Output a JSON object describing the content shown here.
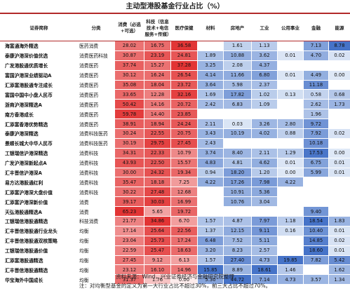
{
  "title": "主动型港股基金行业占比（%）",
  "table": {
    "columns": [
      "证券简称",
      "分类",
      "消费（必选+可选）",
      "科技（信息技术+电信服务+传媒）",
      "医疗保健",
      "材料",
      "房地产",
      "工业",
      "公用事业",
      "金融",
      "能源"
    ],
    "rows": [
      [
        "海富通海外精选",
        "医药消费",
        "28.02",
        "16.75",
        "36.58",
        null,
        "1.61",
        "1.13",
        null,
        "7.13",
        "8.78"
      ],
      [
        "泰康沪港深价值优选",
        "消费医药科技",
        "30.87",
        "23.19",
        "24.81",
        "1.89",
        "10.88",
        "3.62",
        "0.01",
        "4.70",
        "0.02"
      ],
      [
        "广发港股通优质增长",
        "消费医药",
        "37.74",
        "15.27",
        "37.28",
        "3.25",
        "2.08",
        "4.37",
        null,
        null,
        null
      ],
      [
        "富国沪港深业绩驱动A",
        "消费医药",
        "30.12",
        "16.24",
        "26.54",
        "4.14",
        "11.66",
        "6.80",
        "0.01",
        "4.49",
        "0.00"
      ],
      [
        "汇添富港股通专注成长",
        "消费医药",
        "35.08",
        "18.04",
        "23.72",
        "3.64",
        "5.98",
        "2.37",
        null,
        "11.18",
        null
      ],
      [
        "富国中国中小盘人民币",
        "消费医药",
        "33.65",
        "12.28",
        "32.16",
        "1.69",
        "17.82",
        "1.02",
        "0.13",
        "0.58",
        "0.68"
      ],
      [
        "浙商沪港深精选A",
        "消费医药",
        "50.42",
        "14.16",
        "20.72",
        "2.42",
        "6.83",
        "1.09",
        null,
        "2.62",
        "1.73"
      ],
      [
        "南方香港成长",
        "消费医药",
        "59.78",
        "14.40",
        "23.85",
        null,
        null,
        null,
        null,
        "1.96",
        null
      ],
      [
        "汇添富香港优势精选",
        "消费医药",
        "38.91",
        "18.94",
        "24.24",
        "2.11",
        "0.03",
        "3.26",
        "2.80",
        "9.72",
        null
      ],
      [
        "泰康沪港深精选",
        "消费科技医药",
        "30.24",
        "22.55",
        "20.75",
        "3.43",
        "10.19",
        "4.02",
        "0.88",
        "7.92",
        "0.02"
      ],
      [
        "景顺长城大中华人民币",
        "消费科技医药",
        "30.19",
        "29.75",
        "27.45",
        "2.43",
        null,
        null,
        null,
        "10.18",
        null
      ],
      [
        "工银瑞信沪港深精选",
        "消费科技",
        "34.31",
        "22.33",
        "10.79",
        "3.74",
        "8.40",
        "2.11",
        "1.29",
        "17.53",
        "0.00"
      ],
      [
        "广发沪港深新起点A",
        "消费科技",
        "43.93",
        "22.50",
        "15.57",
        "4.83",
        "4.81",
        "4.62",
        "0.01",
        "6.75",
        "0.01"
      ],
      [
        "汇丰晋信沪港深A",
        "消费科技",
        "30.00",
        "24.32",
        "19.34",
        "0.94",
        "18.20",
        "1.20",
        "0.00",
        "5.99",
        "0.01"
      ],
      [
        "易方达港股通红利",
        "消费科技",
        "35.47",
        "18.18",
        "7.25",
        "4.22",
        "17.26",
        "7.98",
        "4.22",
        null,
        null
      ],
      [
        "汇添富沪港深大盘价值",
        "消费科技",
        "30.22",
        "27.48",
        "12.68",
        null,
        "10.91",
        "5.36",
        null,
        null,
        null
      ],
      [
        "汇添富沪港深新价值",
        "消费",
        "39.17",
        "30.03",
        "16.99",
        null,
        "10.76",
        "3.04",
        null,
        null,
        null
      ],
      [
        "天弘港股通精选A",
        "消费",
        "65.23",
        "5.65",
        "19.72",
        null,
        null,
        null,
        null,
        "9.40",
        null
      ],
      [
        "工银瑞信港股通精选",
        "科技消费",
        "21.77",
        "34.86",
        "6.70",
        "1.57",
        "4.87",
        "7.97",
        "1.18",
        "18.54",
        "1.83"
      ],
      [
        "汇丰晋信港股通行业龙头",
        "均衡",
        "17.14",
        "25.64",
        "22.56",
        "1.37",
        "12.15",
        "9.11",
        "0.16",
        "10.40",
        "0.01"
      ],
      [
        "汇丰晋信港股通双核策略",
        "均衡",
        "23.04",
        "25.73",
        "17.24",
        "6.48",
        "7.52",
        "5.11",
        null,
        "14.85",
        "0.02"
      ],
      [
        "工银瑞信港股通价值",
        "均衡",
        "22.59",
        "25.47",
        "18.63",
        "3.20",
        "8.23",
        "2.57",
        null,
        "18.60",
        "0.01"
      ],
      [
        "汇添富港股通精选",
        "均衡",
        "27.45",
        "9.12",
        "6.13",
        "1.57",
        "27.40",
        "4.73",
        "19.85",
        "7.82",
        "5.42"
      ],
      [
        "汇丰晋信港股通精选",
        "均衡",
        "23.12",
        "16.10",
        "14.96",
        "15.85",
        "8.89",
        "18.61",
        "1.46",
        null,
        "1.62"
      ],
      [
        "华宝海外中国成长",
        "均衡",
        "31.37",
        "1.76",
        "0.00",
        "5.30",
        "44.72",
        "7.14",
        "4.73",
        "3.57",
        "1.34"
      ]
    ]
  },
  "notes": [
    "资料来源：Wind，兴业证券经济与金融研究院整理",
    "注：对均衡型基金的定义为第一大行业占比不超过30%，前三大占比不超过70%。"
  ]
}
